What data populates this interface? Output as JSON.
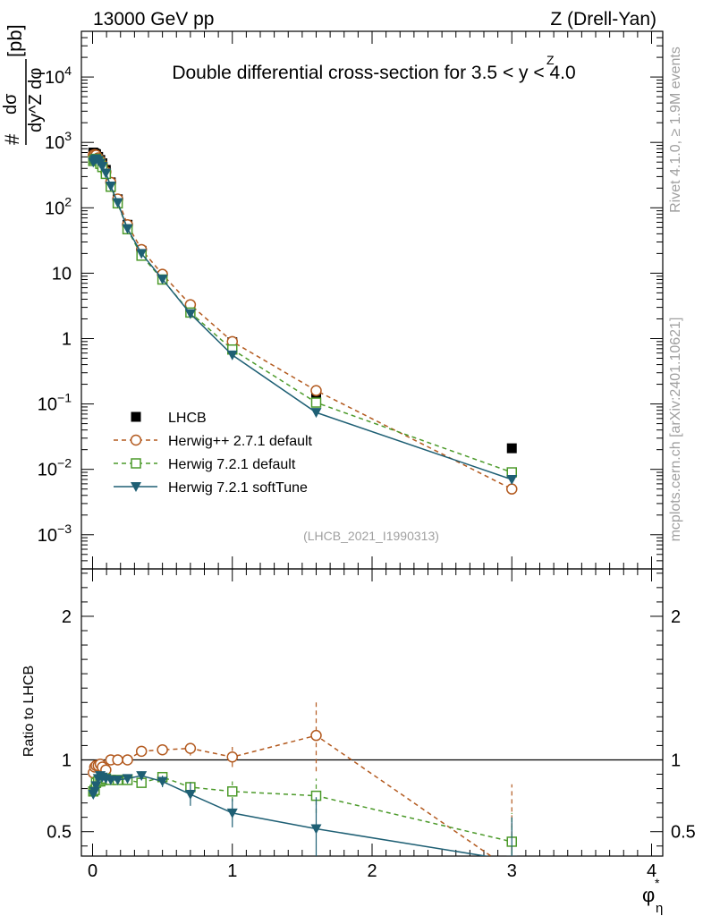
{
  "header": {
    "left": "13000 GeV pp",
    "right": "Z (Drell-Yan)"
  },
  "side": {
    "rivet": "Rivet 4.1.0, ≥ 1.9M events",
    "mcplots": "mcplots.cern.ch [arXiv:2401.10621]"
  },
  "chart_data": {
    "type": "line",
    "title": "Double differential cross-section for 3.5 < y^Z < 4.0",
    "title_parts": {
      "pre": "Double differential cross-section for 3.5 < ",
      "var": "y",
      "sup": "Z",
      "post": " < 4.0"
    },
    "watermark": "(LHCB_2021_I1990313)",
    "xlabel": "φ*η",
    "xlabel_parts": {
      "main": "φ",
      "sup": "*",
      "sub": "η"
    },
    "ylabel": "# dσ / dy^Z dφ*η [pb]",
    "ylabel_parts": {
      "hash": "#",
      "numerator": "dσ",
      "denominator": "dy^Z dφ",
      "unit": "[pb]"
    },
    "ratio_ylabel": "Ratio to LHCB",
    "xlim": [
      -0.08,
      4.08
    ],
    "ylim": [
      0.0003,
      50000
    ],
    "ratio_ylim": [
      0.33,
      2.33
    ],
    "x_ticks": [
      0,
      1,
      2,
      3,
      4
    ],
    "x_tick_labels": [
      "0",
      "1",
      "2",
      "3",
      "4"
    ],
    "y_ticks": [
      0.001,
      0.01,
      0.1,
      1,
      10,
      100,
      1000,
      10000
    ],
    "y_tick_labels": [
      {
        "base": "10",
        "exp": "−3"
      },
      {
        "base": "10",
        "exp": "−2"
      },
      {
        "base": "10",
        "exp": "−1"
      },
      {
        "base": "1",
        "exp": ""
      },
      {
        "base": "10",
        "exp": ""
      },
      {
        "base": "10",
        "exp": "2"
      },
      {
        "base": "10",
        "exp": "3"
      },
      {
        "base": "10",
        "exp": "4"
      }
    ],
    "ratio_ticks": [
      0.5,
      1,
      2
    ],
    "ratio_tick_labels": [
      "0.5",
      "1",
      "2"
    ],
    "x": [
      0.005,
      0.015,
      0.025,
      0.04,
      0.055,
      0.07,
      0.095,
      0.13,
      0.18,
      0.25,
      0.35,
      0.5,
      0.7,
      1.0,
      1.6,
      3.0
    ],
    "series": [
      {
        "name": "LHCB",
        "color": "#000000",
        "marker": "square",
        "line": "none",
        "values": [
          700,
          680,
          660,
          600,
          540,
          480,
          380,
          245,
          135,
          55,
          22,
          9.0,
          3.0,
          0.88,
          0.14,
          0.021
        ],
        "ratio": [
          1,
          1,
          1,
          1,
          1,
          1,
          1,
          1,
          1,
          1,
          1,
          1,
          1,
          1,
          1,
          1
        ]
      },
      {
        "name": "Herwig++ 2.7.1 default",
        "color": "#b35a1f",
        "marker": "circle",
        "line": "dashed",
        "values": [
          640,
          650,
          640,
          580,
          525,
          455,
          355,
          245,
          136,
          55,
          23,
          9.6,
          3.3,
          0.9,
          0.16,
          0.005
        ],
        "ratio": [
          0.91,
          0.95,
          0.96,
          0.96,
          0.97,
          0.95,
          0.93,
          1.0,
          1.0,
          1.0,
          1.06,
          1.07,
          1.08,
          1.02,
          1.17,
          0.23
        ],
        "ratio_err": [
          0,
          0,
          0,
          0,
          0,
          0,
          0,
          0,
          0,
          0,
          0.03,
          0.03,
          0.05,
          0.07,
          0.25,
          0.6
        ]
      },
      {
        "name": "Herwig 7.2.1 default",
        "color": "#4c9a2a",
        "marker": "open-square",
        "line": "dashed",
        "values": [
          520,
          550,
          560,
          520,
          470,
          420,
          330,
          210,
          117,
          47,
          18.5,
          8.0,
          2.5,
          0.68,
          0.105,
          0.009
        ],
        "ratio": [
          0.78,
          0.79,
          0.84,
          0.85,
          0.85,
          0.86,
          0.87,
          0.86,
          0.86,
          0.86,
          0.84,
          0.88,
          0.81,
          0.78,
          0.75,
          0.43
        ],
        "ratio_err": [
          0,
          0,
          0,
          0,
          0,
          0,
          0,
          0,
          0,
          0,
          0.02,
          0.03,
          0.05,
          0.07,
          0.12,
          0.2
        ]
      },
      {
        "name": "Herwig 7.2.1 softTune",
        "color": "#1e5f74",
        "marker": "triangle-down",
        "line": "solid",
        "values": [
          500,
          540,
          560,
          530,
          480,
          430,
          340,
          215,
          120,
          48,
          20,
          8.1,
          2.4,
          0.56,
          0.074,
          0.007
        ],
        "ratio": [
          0.76,
          0.78,
          0.82,
          0.87,
          0.89,
          0.88,
          0.87,
          0.86,
          0.86,
          0.87,
          0.89,
          0.85,
          0.76,
          0.63,
          0.52,
          0.3
        ],
        "ratio_err": [
          0,
          0,
          0,
          0,
          0,
          0,
          0,
          0,
          0,
          0,
          0.03,
          0.04,
          0.08,
          0.1,
          0.22,
          0.3
        ]
      }
    ],
    "legend_position": "bottom-left"
  }
}
